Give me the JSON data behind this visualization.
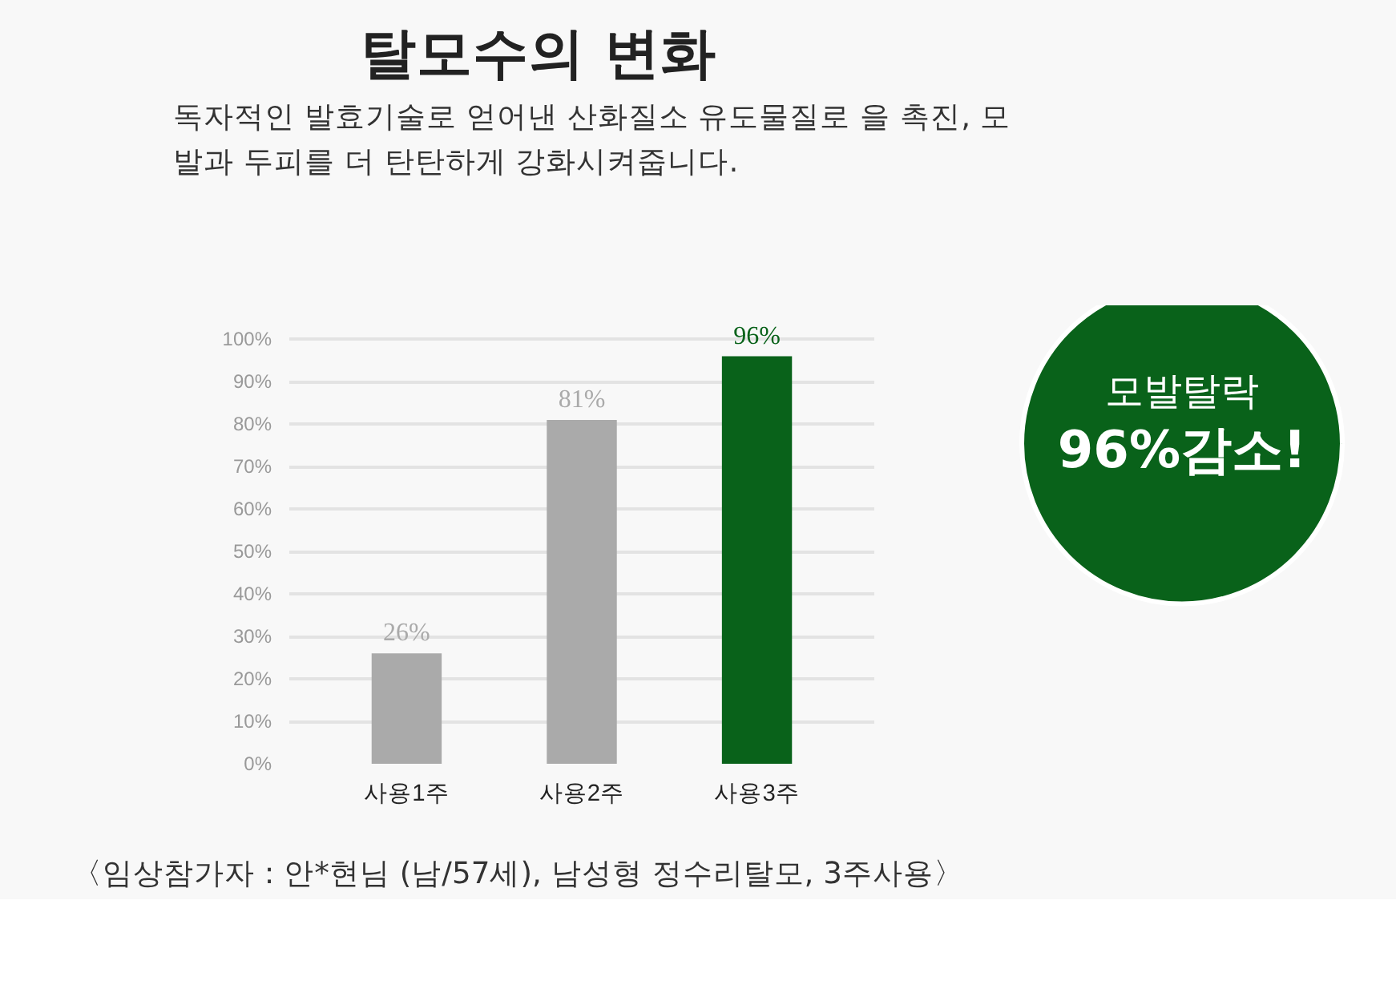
{
  "chart_data": {
    "type": "bar",
    "title": "탈모수의 변화",
    "subtitle": "독자적인 발효기술로 얻어낸 산화질소 유도물질로 을 촉진, 모발과 두피를 더 탄탄하게 강화시켜줍니다.",
    "categories": [
      "사용1주",
      "사용2주",
      "사용3주"
    ],
    "values": [
      26,
      81,
      96
    ],
    "colors": [
      "#aaaaaa",
      "#aaaaaa",
      "#09621a"
    ],
    "value_labels": [
      "26%",
      "81%",
      "96%"
    ],
    "ylim": [
      0,
      100
    ],
    "yticks": [
      {
        "value": 0,
        "label": "0%"
      },
      {
        "value": 10,
        "label": "10%"
      },
      {
        "value": 20,
        "label": "20%"
      },
      {
        "value": 30,
        "label": "30%"
      },
      {
        "value": 40,
        "label": "40%"
      },
      {
        "value": 50,
        "label": "50%"
      },
      {
        "value": 60,
        "label": "60%"
      },
      {
        "value": 70,
        "label": "70%"
      },
      {
        "value": 80,
        "label": "80%"
      },
      {
        "value": 90,
        "label": "90%"
      },
      {
        "value": 100,
        "label": "100%"
      }
    ],
    "grid": "y",
    "annotations": [
      "모발탈락",
      "96%감소!",
      "〈임상참가자 : 안*현님 (남/57세), 남성형 정수리탈모, 3주사용〉"
    ]
  }
}
